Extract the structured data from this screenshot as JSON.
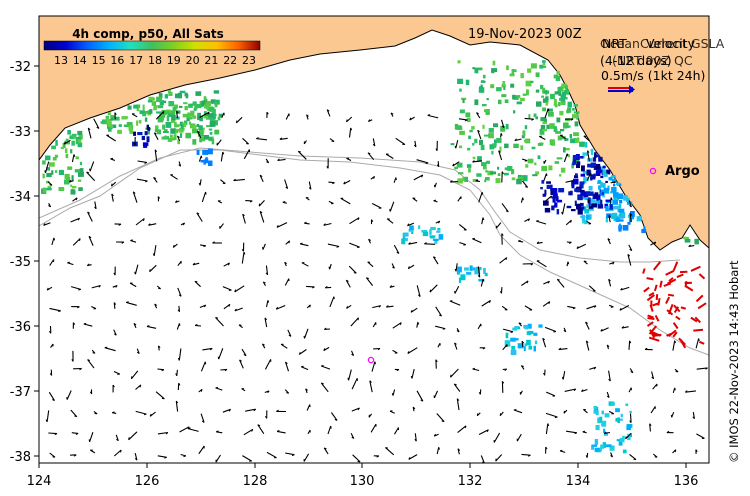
{
  "title": {
    "colorbar_title": "4h comp, p50, All Sats",
    "date": "19-Nov-2023 00Z",
    "legend_line1a": "NRT",
    "legend_line1b": "Velocity",
    "legend_line1c": "OceanCurrent GSLA",
    "legend_line2a": "(4-12 days)",
    "legend_line2b": "(NRT 00Z QC",
    "legend_line3": "0.5m/s (1kt 24h)",
    "credit": "© IMOS 22-Nov-2023 14:43 Hobart",
    "argo_label": "Argo"
  },
  "colorbar": {
    "ticks": [
      "13",
      "14",
      "15",
      "16",
      "17",
      "18",
      "19",
      "20",
      "21",
      "22",
      "23"
    ],
    "colors": [
      "#000080",
      "#0000d0",
      "#0060ff",
      "#00b0ff",
      "#20e0c0",
      "#40c060",
      "#80d020",
      "#d0e000",
      "#ffc000",
      "#ff6000",
      "#e00000",
      "#900000"
    ]
  },
  "axes": {
    "x_ticks": [
      "124",
      "126",
      "128",
      "130",
      "132",
      "134",
      "136"
    ],
    "y_ticks": [
      "-32",
      "-33",
      "-34",
      "-35",
      "-36",
      "-37",
      "-38"
    ]
  },
  "colors": {
    "land": "#fcc892",
    "coast": "#000000",
    "arrow": "#000000",
    "argo": "#ff00ff",
    "hfradar": "#e00000"
  }
}
